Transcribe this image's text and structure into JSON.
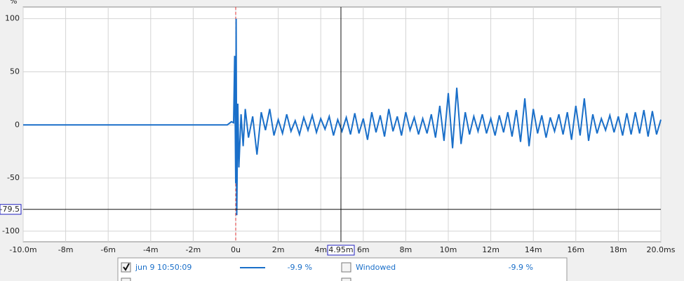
{
  "chart_data": {
    "type": "line",
    "y_unit": "%",
    "x": [
      -10,
      -0.4,
      -0.2,
      -0.1,
      -0.05,
      0,
      0.02,
      0.05,
      0.1,
      0.15,
      0.25,
      0.35,
      0.45,
      0.6,
      0.8,
      1.0,
      1.2,
      1.4,
      1.6,
      1.8,
      2.0,
      2.2,
      2.4,
      2.6,
      2.8,
      3.0,
      3.2,
      3.4,
      3.6,
      3.8,
      4.0,
      4.2,
      4.4,
      4.6,
      4.8,
      5.0,
      5.2,
      5.4,
      5.6,
      5.8,
      6.0,
      6.2,
      6.4,
      6.6,
      6.8,
      7.0,
      7.2,
      7.4,
      7.6,
      7.8,
      8.0,
      8.2,
      8.4,
      8.6,
      8.8,
      9.0,
      9.2,
      9.4,
      9.6,
      9.8,
      10.0,
      10.2,
      10.4,
      10.6,
      10.8,
      11.0,
      11.2,
      11.4,
      11.6,
      11.8,
      12.0,
      12.2,
      12.4,
      12.6,
      12.8,
      13.0,
      13.2,
      13.4,
      13.6,
      13.8,
      14.0,
      14.2,
      14.4,
      14.6,
      14.8,
      15.0,
      15.2,
      15.4,
      15.6,
      15.8,
      16.0,
      16.2,
      16.4,
      16.6,
      16.8,
      17.0,
      17.2,
      17.4,
      17.6,
      17.8,
      18.0,
      18.2,
      18.4,
      18.6,
      18.8,
      19.0,
      19.2,
      19.4,
      19.6,
      19.8,
      20.0
    ],
    "series": [
      {
        "name": "jun 9 10:50:09",
        "color": "#1a6fc9",
        "values": [
          0,
          0,
          3,
          2,
          65,
          -55,
          100,
          -85,
          20,
          -40,
          10,
          -20,
          15,
          -12,
          8,
          -28,
          12,
          -5,
          15,
          -10,
          5,
          -8,
          10,
          -6,
          4,
          -9,
          7,
          -5,
          9,
          -7,
          6,
          -4,
          8,
          -10,
          5,
          -6,
          7,
          -9,
          11,
          -8,
          6,
          -14,
          12,
          -7,
          9,
          -11,
          15,
          -6,
          8,
          -10,
          12,
          -5,
          7,
          -9,
          6,
          -8,
          10,
          -12,
          18,
          -15,
          30,
          -22,
          35,
          -18,
          12,
          -9,
          8,
          -6,
          10,
          -8,
          6,
          -10,
          9,
          -7,
          12,
          -11,
          14,
          -16,
          25,
          -20,
          15,
          -8,
          9,
          -12,
          7,
          -6,
          10,
          -9,
          12,
          -14,
          18,
          -10,
          25,
          -15,
          10,
          -8,
          6,
          -5,
          9,
          -7,
          8,
          -10,
          11,
          -9,
          12,
          -8,
          14,
          -11,
          13,
          -9,
          5
        ]
      }
    ],
    "xlim": [
      -10,
      20
    ],
    "ylim": [
      -110,
      111
    ],
    "xticks": [
      {
        "value": -10,
        "label": "-10.0m"
      },
      {
        "value": -8,
        "label": "-8m"
      },
      {
        "value": -6,
        "label": "-6m"
      },
      {
        "value": -4,
        "label": "-4m"
      },
      {
        "value": -2,
        "label": "-2m"
      },
      {
        "value": 0,
        "label": "0u"
      },
      {
        "value": 2,
        "label": "2m"
      },
      {
        "value": 4,
        "label": "4m"
      },
      {
        "value": 6,
        "label": "6m"
      },
      {
        "value": 8,
        "label": "8m"
      },
      {
        "value": 10,
        "label": "10m"
      },
      {
        "value": 12,
        "label": "12m"
      },
      {
        "value": 14,
        "label": "14m"
      },
      {
        "value": 16,
        "label": "16m"
      },
      {
        "value": 18,
        "label": "18m"
      },
      {
        "value": 20,
        "label": "20.0ms"
      }
    ],
    "yticks": [
      100,
      50,
      0,
      -50,
      -100
    ],
    "grid": true,
    "reference_x": 0,
    "cursor_x": {
      "value": 4.95,
      "label": "4.95m"
    },
    "cursor_y": -79.5,
    "legend": [
      {
        "checked": true,
        "value": "-9.9 %"
      },
      {
        "label": "Windowed",
        "checked": false,
        "value": "-9.9 %"
      }
    ]
  }
}
